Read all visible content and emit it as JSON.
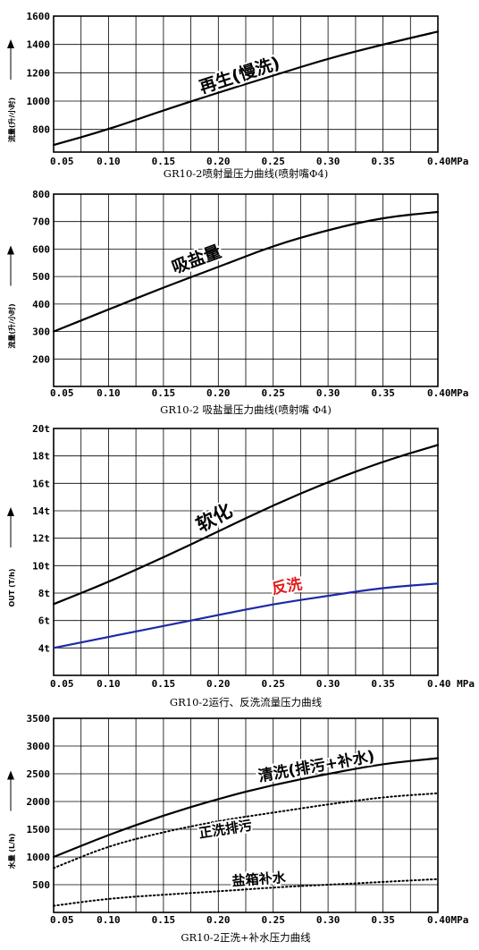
{
  "x_ticks": [
    "0.05",
    "0.10",
    "0.15",
    "0.20",
    "0.25",
    "0.30",
    "0.35",
    "0.40MPa"
  ],
  "chart_data": [
    {
      "type": "line",
      "title": "GR10-2喷射量压力曲线(喷射嘴Φ4)",
      "ylabel": "流量(升/小时)",
      "xlabel": "",
      "x": [
        0.05,
        0.1,
        0.15,
        0.2,
        0.25,
        0.3,
        0.35,
        0.4
      ],
      "xlim": [
        0.05,
        0.4
      ],
      "ylim": [
        640,
        1600
      ],
      "y_ticks": [
        "800",
        "1000",
        "1200",
        "1400",
        "1600"
      ],
      "x_ticks": [
        "0.05",
        "0.10",
        "0.15",
        "0.20",
        "0.25",
        "0.30",
        "0.35",
        "0.40MPa"
      ],
      "grid": true,
      "series": [
        {
          "name": "再生(慢洗)",
          "color": "#000000",
          "style": "solid",
          "values": [
            690,
            800,
            935,
            1060,
            1180,
            1300,
            1400,
            1490
          ]
        }
      ]
    },
    {
      "type": "line",
      "title": "GR10-2 吸盐量压力曲线(喷射嘴 Φ4)",
      "ylabel": "流量(升/小时)",
      "xlabel": "",
      "x": [
        0.05,
        0.1,
        0.15,
        0.2,
        0.25,
        0.3,
        0.35,
        0.4
      ],
      "xlim": [
        0.05,
        0.4
      ],
      "ylim": [
        100,
        800
      ],
      "y_ticks": [
        "200",
        "300",
        "400",
        "500",
        "600",
        "700",
        "800"
      ],
      "x_ticks": [
        "0.05",
        "0.10",
        "0.15",
        "0.20",
        "0.25",
        "0.30",
        "0.35",
        "0.40MPa"
      ],
      "grid": true,
      "series": [
        {
          "name": "吸盐量",
          "color": "#000000",
          "style": "solid",
          "values": [
            300,
            380,
            460,
            535,
            612,
            670,
            715,
            735
          ]
        }
      ]
    },
    {
      "type": "line",
      "title": "GR10-2运行、反洗流量压力曲线",
      "ylabel": "OUT (T/h)",
      "xlabel": "",
      "x": [
        0.05,
        0.1,
        0.15,
        0.2,
        0.25,
        0.3,
        0.35,
        0.4
      ],
      "xlim": [
        0.05,
        0.4
      ],
      "ylim": [
        2,
        20
      ],
      "y_ticks": [
        "4t",
        "6t",
        "8t",
        "10t",
        "12t",
        "14t",
        "16t",
        "18t",
        "20t"
      ],
      "x_ticks": [
        "0.05",
        "0.10",
        "0.15",
        "0.20",
        "0.25",
        "0.30",
        "0.35",
        "0.40 MPa"
      ],
      "grid": true,
      "series": [
        {
          "name": "软化",
          "color": "#000000",
          "style": "solid",
          "values": [
            7.2,
            8.8,
            10.6,
            12.5,
            14.4,
            16.1,
            17.6,
            18.8
          ]
        },
        {
          "name": "反洗",
          "color": "#1c2aa8",
          "style": "solid",
          "values": [
            4.0,
            4.8,
            5.6,
            6.4,
            7.2,
            7.8,
            8.4,
            8.7
          ]
        }
      ]
    },
    {
      "type": "line",
      "title": "GR10-2正洗+补水压力曲线",
      "ylabel": "水量 (L/h)",
      "xlabel": "",
      "x": [
        0.05,
        0.1,
        0.15,
        0.2,
        0.25,
        0.3,
        0.35,
        0.4
      ],
      "xlim": [
        0.05,
        0.4
      ],
      "ylim": [
        0,
        3500
      ],
      "y_ticks": [
        "500",
        "1000",
        "1500",
        "2000",
        "2500",
        "3000",
        "3500"
      ],
      "x_ticks": [
        "0.05",
        "0.10",
        "0.15",
        "0.20",
        "0.25",
        "0.30",
        "0.35",
        "0.40MPa"
      ],
      "grid": true,
      "series": [
        {
          "name": "清洗(排污+补水)",
          "color": "#000000",
          "style": "solid",
          "values": [
            1000,
            1400,
            1750,
            2050,
            2300,
            2500,
            2680,
            2780
          ]
        },
        {
          "name": "正洗排污",
          "color": "#000000",
          "style": "dotted",
          "values": [
            800,
            1200,
            1450,
            1650,
            1800,
            1950,
            2080,
            2150
          ]
        },
        {
          "name": "盐箱补水",
          "color": "#000000",
          "style": "dotted",
          "values": [
            120,
            250,
            320,
            380,
            450,
            500,
            550,
            600
          ]
        }
      ]
    }
  ]
}
